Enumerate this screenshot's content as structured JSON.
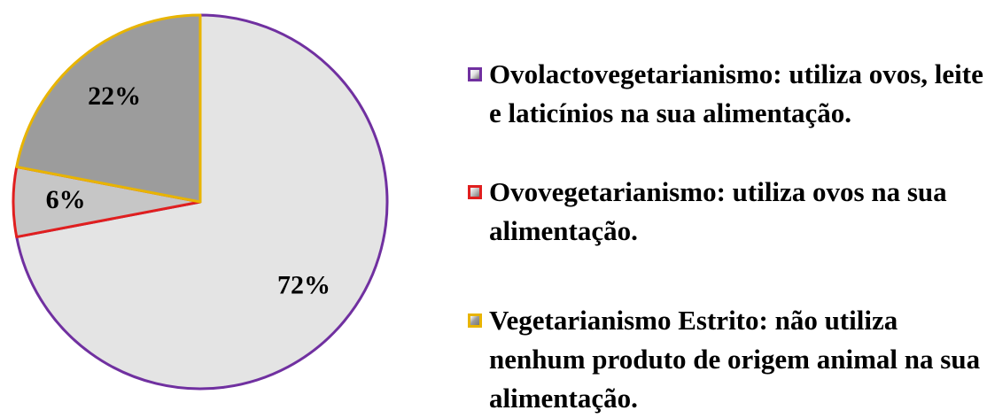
{
  "chart_data": {
    "type": "pie",
    "categories": [
      "Ovolactovegetarianismo: utiliza ovos, leite e laticínios na sua alimentação.",
      "Ovovegetarianismo: utiliza ovos na sua alimentação.",
      "Vegetarianismo Estrito: não utiliza nenhum produto de origem animal na sua alimentação."
    ],
    "values": [
      72,
      6,
      22
    ],
    "value_labels": [
      "72%",
      "6%",
      "22%"
    ],
    "colors": [
      "#e4e4e4",
      "#c6c6c6",
      "#9c9c9c"
    ],
    "edge_colors": [
      "#7030a0",
      "#e01f1f",
      "#e8b400"
    ],
    "legend": "right"
  }
}
